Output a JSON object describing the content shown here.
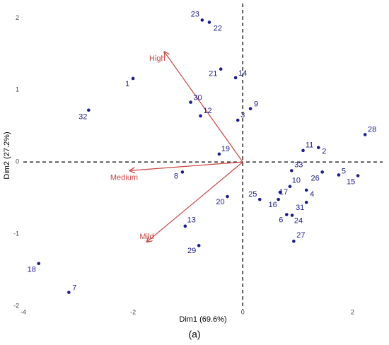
{
  "chart_data": {
    "type": "scatter",
    "xlabel": "Dim1 (69.6%)",
    "ylabel": "Dim2 (27.2%)",
    "caption": "(a)",
    "xlim": [
      -4,
      2.55
    ],
    "ylim": [
      -2.05,
      2.2
    ],
    "xticks": [
      -4,
      -2,
      0,
      2
    ],
    "yticks": [
      -2,
      -1,
      0,
      1,
      2
    ],
    "grid": false,
    "vline": 0,
    "hline": 0,
    "points": {
      "color": "#1c1c8a",
      "labels": [
        "23",
        "22",
        "21",
        "14",
        "1",
        "30",
        "12",
        "32",
        "9",
        "3",
        "28",
        "11",
        "2",
        "19",
        "33",
        "26",
        "5",
        "15",
        "8",
        "10",
        "17",
        "4",
        "25",
        "16",
        "20",
        "31",
        "6",
        "24",
        "13",
        "27",
        "29",
        "18",
        "7"
      ],
      "x": [
        -0.74,
        -0.61,
        -0.4,
        -0.13,
        -2.0,
        -0.95,
        -0.77,
        -2.81,
        0.14,
        -0.09,
        2.23,
        1.1,
        1.38,
        -0.43,
        0.89,
        1.45,
        1.75,
        2.1,
        -1.1,
        0.86,
        0.68,
        1.16,
        0.31,
        0.65,
        -0.28,
        1.16,
        0.8,
        0.9,
        -1.05,
        0.93,
        -0.8,
        -3.72,
        -3.17
      ],
      "y": [
        1.97,
        1.94,
        1.29,
        1.17,
        1.16,
        0.83,
        0.64,
        0.72,
        0.74,
        0.58,
        0.38,
        0.16,
        0.2,
        0.11,
        -0.12,
        -0.14,
        -0.18,
        -0.19,
        -0.14,
        -0.34,
        -0.42,
        -0.39,
        -0.52,
        -0.52,
        -0.48,
        -0.56,
        -0.73,
        -0.74,
        -0.89,
        -1.1,
        -1.16,
        -1.41,
        -1.81
      ]
    },
    "vectors": {
      "color": "#c8453f",
      "names": [
        "High",
        "Medium",
        "Mild"
      ],
      "x": [
        -1.43,
        -2.06,
        -1.75
      ],
      "y": [
        1.53,
        -0.12,
        -1.11
      ]
    }
  }
}
